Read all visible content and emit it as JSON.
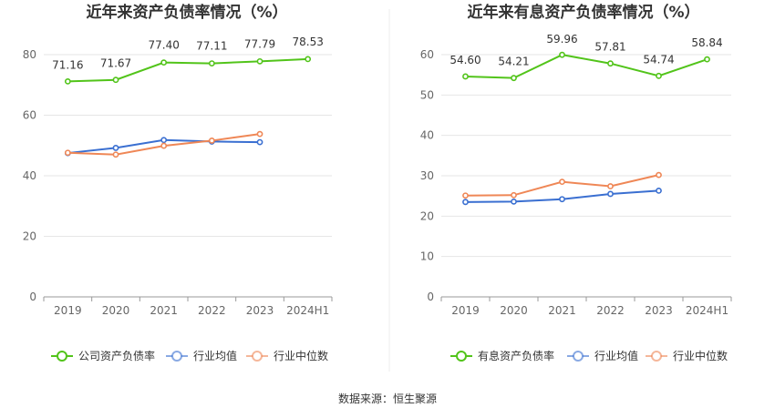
{
  "chart_data": [
    {
      "type": "line",
      "title": "近年来资产负债率情况（%）",
      "categories": [
        "2019",
        "2020",
        "2021",
        "2022",
        "2023",
        "2024H1"
      ],
      "ylim": [
        0,
        80
      ],
      "yticks": [
        0,
        20,
        40,
        60,
        80
      ],
      "grid": true,
      "legend_position": "bottom",
      "series": [
        {
          "name": "公司资产负债率",
          "color": "#52c41a",
          "values": [
            71.16,
            71.67,
            77.4,
            77.11,
            77.79,
            78.53
          ],
          "labels": [
            "71.16",
            "71.67",
            "77.40",
            "77.11",
            "77.79",
            "78.53"
          ]
        },
        {
          "name": "行业均值",
          "color": "#3a6fd1",
          "values": [
            47.5,
            49.2,
            51.8,
            51.3,
            51.1,
            null
          ]
        },
        {
          "name": "行业中位数",
          "color": "#ef8756",
          "values": [
            47.6,
            47.0,
            49.9,
            51.6,
            53.8,
            null
          ]
        }
      ]
    },
    {
      "type": "line",
      "title": "近年来有息资产负债率情况（%）",
      "categories": [
        "2019",
        "2020",
        "2021",
        "2022",
        "2023",
        "2024H1"
      ],
      "ylim": [
        0,
        60
      ],
      "yticks": [
        0,
        10,
        20,
        30,
        40,
        50,
        60
      ],
      "grid": true,
      "legend_position": "bottom",
      "series": [
        {
          "name": "有息资产负债率",
          "color": "#52c41a",
          "values": [
            54.6,
            54.21,
            59.96,
            57.81,
            54.74,
            58.84
          ],
          "labels": [
            "54.60",
            "54.21",
            "59.96",
            "57.81",
            "54.74",
            "58.84"
          ]
        },
        {
          "name": "行业均值",
          "color": "#3a6fd1",
          "values": [
            23.5,
            23.6,
            24.2,
            25.5,
            26.3,
            null
          ]
        },
        {
          "name": "行业中位数",
          "color": "#ef8756",
          "values": [
            25.1,
            25.2,
            28.5,
            27.4,
            30.2,
            null
          ]
        }
      ]
    }
  ],
  "footer": {
    "source": "数据来源：恒生聚源"
  },
  "colors": {
    "grid": "#e6e6e6",
    "axis": "#999999",
    "divider": "#eeeeee"
  }
}
